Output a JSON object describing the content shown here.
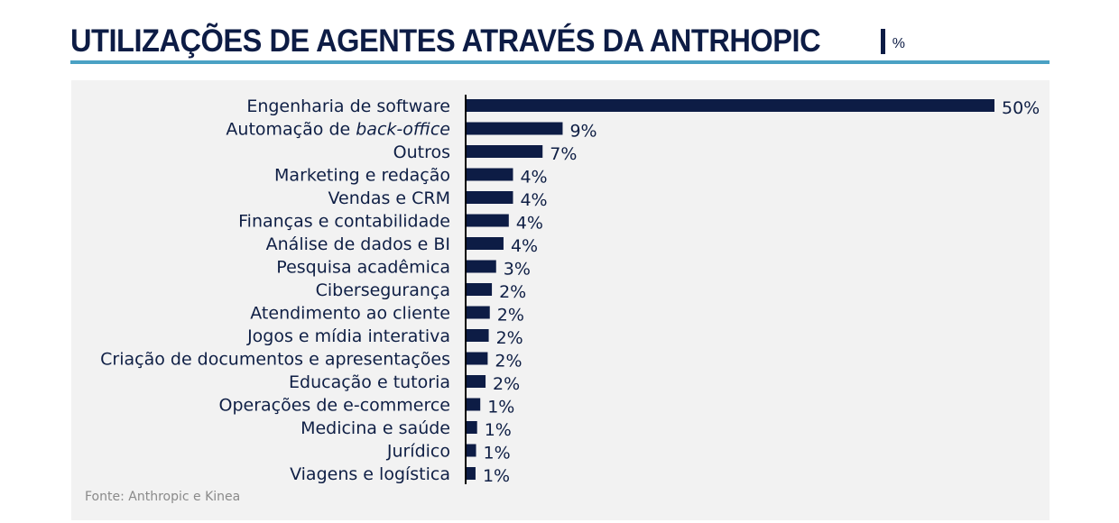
{
  "header": {
    "title": "UTILIZAÇÕES DE AGENTES ATRAVÉS DA ANTRHOPIC",
    "unit": "%"
  },
  "colors": {
    "bar": "#0d1c45",
    "accent_rule": "#4aa1c4",
    "panel_bg": "#f2f2f2",
    "text": "#0f1f45",
    "source_text": "#8a8a8a"
  },
  "chart_data": {
    "type": "bar",
    "orientation": "horizontal",
    "title": "UTILIZAÇÕES DE AGENTES ATRAVÉS DA ANTRHOPIC | %",
    "xlabel": "",
    "ylabel": "",
    "xlim": [
      0,
      50
    ],
    "grid": false,
    "legend": "none",
    "categories": [
      "Engenharia de software",
      "Automação de back-office",
      "Outros",
      "Marketing e redação",
      "Vendas e CRM",
      "Finanças e contabilidade",
      "Análise de dados e BI",
      "Pesquisa acadêmica",
      "Cibersegurança",
      "Atendimento ao cliente",
      "Jogos e mídia interativa",
      "Criação de documentos e apresentações",
      "Educação e tutoria",
      "Operações de e-commerce",
      "Medicina e saúde",
      "Jurídico",
      "Viagens e logística"
    ],
    "italic_parts": {
      "1": "back-office"
    },
    "values": [
      50,
      9.1,
      7.2,
      4.4,
      4.4,
      4.0,
      3.5,
      2.8,
      2.4,
      2.2,
      2.1,
      2.0,
      1.8,
      1.3,
      1.0,
      0.9,
      0.85
    ],
    "data_labels": [
      "50%",
      "9%",
      "7%",
      "4%",
      "4%",
      "4%",
      "4%",
      "3%",
      "2%",
      "2%",
      "2%",
      "2%",
      "2%",
      "1%",
      "1%",
      "1%",
      "1%"
    ]
  },
  "footer": {
    "source": "Fonte: Anthropic e Kinea"
  }
}
